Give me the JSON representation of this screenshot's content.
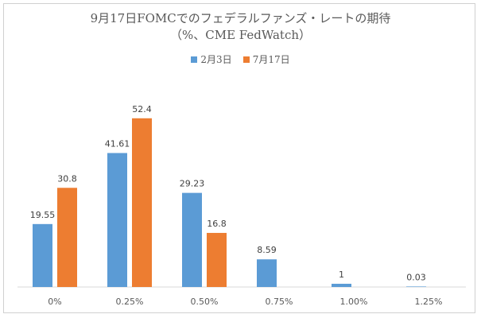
{
  "chart_data": {
    "type": "bar",
    "title": "9月17日FOMCでのフェデラルファンズ・レートの期待",
    "subtitle": "（%、CME FedWatch）",
    "categories": [
      "0%",
      "0.25%",
      "0.50%",
      "0.75%",
      "1.00%",
      "1.25%"
    ],
    "series": [
      {
        "name": "2月3日",
        "color": "#5B9BD5",
        "values": [
          19.55,
          41.61,
          29.23,
          8.59,
          1,
          0.03
        ],
        "labels": [
          "19.55",
          "41.61",
          "29.23",
          "8.59",
          "1",
          "0.03"
        ]
      },
      {
        "name": "7月17日",
        "color": "#ED7D31",
        "values": [
          30.8,
          52.4,
          16.8,
          null,
          null,
          null
        ],
        "labels": [
          "30.8",
          "52.4",
          "16.8",
          "",
          "",
          ""
        ]
      }
    ],
    "ylim": [
      0,
      60
    ],
    "grid": false,
    "legend": "top"
  }
}
